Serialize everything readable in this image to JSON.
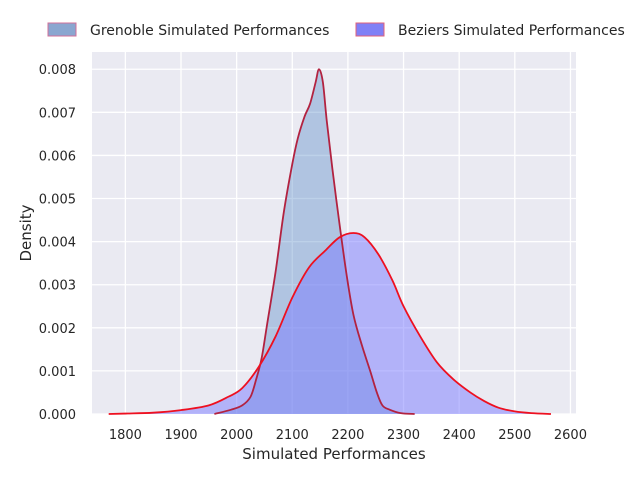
{
  "chart_data": {
    "type": "area",
    "xlabel": "Simulated Performances",
    "ylabel": "Density",
    "xlim": [
      1740,
      2610
    ],
    "ylim": [
      0,
      0.0084
    ],
    "xticks": [
      1800,
      1900,
      2000,
      2100,
      2200,
      2300,
      2400,
      2500,
      2600
    ],
    "yticks": [
      0.0,
      0.001,
      0.002,
      0.003,
      0.004,
      0.005,
      0.006,
      0.007,
      0.008
    ],
    "ytick_labels": [
      "0.000",
      "0.001",
      "0.002",
      "0.003",
      "0.004",
      "0.005",
      "0.006",
      "0.007",
      "0.008"
    ],
    "grid": true,
    "legend_position": "top",
    "background": "#eaeaf2",
    "series": [
      {
        "name": "Grenoble Simulated Performances",
        "fill": "#5b8cc8",
        "fill_opacity": 0.4,
        "line": "#b22240",
        "points": [
          [
            1960,
            0.0
          ],
          [
            1990,
            0.0001
          ],
          [
            2010,
            0.0002
          ],
          [
            2025,
            0.0004
          ],
          [
            2035,
            0.0008
          ],
          [
            2045,
            0.0013
          ],
          [
            2055,
            0.0021
          ],
          [
            2070,
            0.0033
          ],
          [
            2085,
            0.0047
          ],
          [
            2100,
            0.0058
          ],
          [
            2110,
            0.0064
          ],
          [
            2122,
            0.0069
          ],
          [
            2132,
            0.0072
          ],
          [
            2142,
            0.0077
          ],
          [
            2148,
            0.008
          ],
          [
            2155,
            0.0077
          ],
          [
            2162,
            0.0068
          ],
          [
            2172,
            0.0057
          ],
          [
            2185,
            0.0044
          ],
          [
            2198,
            0.0032
          ],
          [
            2210,
            0.0023
          ],
          [
            2225,
            0.0016
          ],
          [
            2240,
            0.001
          ],
          [
            2252,
            0.0005
          ],
          [
            2262,
            0.0002
          ],
          [
            2275,
            0.0001
          ],
          [
            2295,
            2e-05
          ],
          [
            2320,
            0.0
          ]
        ]
      },
      {
        "name": "Beziers Simulated Performances",
        "fill": "#7a7aff",
        "fill_opacity": 0.5,
        "line": "#ee1020",
        "points": [
          [
            1770,
            0.0
          ],
          [
            1800,
            1e-05
          ],
          [
            1850,
            3e-05
          ],
          [
            1900,
            9e-05
          ],
          [
            1950,
            0.0002
          ],
          [
            1985,
            0.0004
          ],
          [
            2010,
            0.0006
          ],
          [
            2040,
            0.0011
          ],
          [
            2070,
            0.0018
          ],
          [
            2100,
            0.0027
          ],
          [
            2130,
            0.0034
          ],
          [
            2160,
            0.0038
          ],
          [
            2185,
            0.0041
          ],
          [
            2210,
            0.0042
          ],
          [
            2230,
            0.0041
          ],
          [
            2255,
            0.0037
          ],
          [
            2280,
            0.0031
          ],
          [
            2300,
            0.0025
          ],
          [
            2330,
            0.0018
          ],
          [
            2360,
            0.0012
          ],
          [
            2390,
            0.0008
          ],
          [
            2420,
            0.0005
          ],
          [
            2445,
            0.0003
          ],
          [
            2470,
            0.00015
          ],
          [
            2500,
            6e-05
          ],
          [
            2530,
            2e-05
          ],
          [
            2565,
            0.0
          ]
        ]
      }
    ]
  }
}
